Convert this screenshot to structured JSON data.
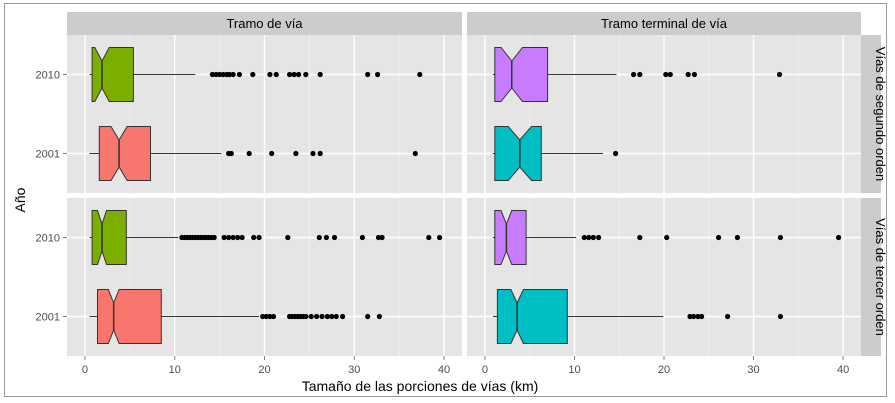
{
  "chart_data": {
    "type": "boxplot",
    "xlabel": "Tamaño de las porciones de vías (km)",
    "ylabel": "Año",
    "xlim": [
      -2,
      42
    ],
    "xticks": [
      0,
      10,
      20,
      30,
      40
    ],
    "ycategories": [
      "2010",
      "2001"
    ],
    "grid": true,
    "legend": "none",
    "colors": {
      "2010": [
        "#7cae00",
        "#c77cff"
      ],
      "2001": [
        "#f8766d",
        "#00bfc4"
      ]
    },
    "facet_cols": [
      "Tramo de vía",
      "Tramo terminal de vía"
    ],
    "facet_rows": [
      "Vías de segundo orden",
      "Vías de tercer orden"
    ],
    "panels": [
      {
        "col": "Tramo de vía",
        "row": "Vías de segundo orden",
        "boxes": [
          {
            "year": "2010",
            "whisker_low": 0.5,
            "q1": 0.8,
            "median": 1.9,
            "q3": 5.4,
            "whisker_high": 12.3,
            "notch": 0.8,
            "outliers": [
              14.2,
              14.6,
              15.0,
              15.4,
              15.8,
              16.1,
              16.5,
              17.2,
              18.7,
              20.6,
              21.3,
              22.8,
              23.3,
              23.8,
              24.6,
              26.2,
              31.5,
              32.6,
              37.3
            ]
          },
          {
            "year": "2001",
            "whisker_low": 0.5,
            "q1": 1.6,
            "median": 3.8,
            "q3": 7.3,
            "whisker_high": 15.2,
            "notch": 0.9,
            "outliers": [
              16.0,
              16.3,
              18.3,
              20.8,
              23.5,
              25.4,
              26.2,
              36.8
            ]
          }
        ]
      },
      {
        "col": "Tramo terminal de vía",
        "row": "Vías de segundo orden",
        "boxes": [
          {
            "year": "2010",
            "whisker_low": 0.9,
            "q1": 1.1,
            "median": 3.0,
            "q3": 7.0,
            "whisker_high": 14.7,
            "notch": 1.2,
            "outliers": [
              16.6,
              17.3,
              20.2,
              20.7,
              22.7,
              23.4,
              32.9
            ]
          },
          {
            "year": "2001",
            "whisker_low": 0.9,
            "q1": 1.1,
            "median": 3.9,
            "q3": 6.3,
            "whisker_high": 13.2,
            "notch": 1.3,
            "outliers": [
              14.6
            ]
          }
        ]
      },
      {
        "col": "Tramo de vía",
        "row": "Vías de tercer orden",
        "boxes": [
          {
            "year": "2010",
            "whisker_low": 0.5,
            "q1": 0.8,
            "median": 1.9,
            "q3": 4.6,
            "whisker_high": 10.4,
            "notch": 0.5,
            "outliers": [
              10.8,
              11.1,
              11.4,
              11.7,
              12.0,
              12.3,
              12.6,
              12.9,
              13.2,
              13.5,
              13.8,
              14.1,
              14.4,
              15.5,
              16.0,
              16.5,
              17.0,
              17.5,
              18.8,
              19.4,
              22.6,
              26.1,
              26.9,
              27.8,
              30.9,
              32.7,
              33.1,
              38.3,
              39.5
            ]
          },
          {
            "year": "2001",
            "whisker_low": 0.5,
            "q1": 1.4,
            "median": 3.2,
            "q3": 8.5,
            "whisker_high": 19.4,
            "notch": 0.6,
            "outliers": [
              19.8,
              20.2,
              20.6,
              21.0,
              22.8,
              23.1,
              23.4,
              23.7,
              24.0,
              24.3,
              24.6,
              25.2,
              25.8,
              26.4,
              27.0,
              27.5,
              28.0,
              28.7,
              31.5,
              32.8
            ]
          }
        ]
      },
      {
        "col": "Tramo terminal de vía",
        "row": "Vías de tercer orden",
        "boxes": [
          {
            "year": "2010",
            "whisker_low": 0.9,
            "q1": 1.1,
            "median": 2.4,
            "q3": 4.6,
            "whisker_high": 10.2,
            "notch": 0.6,
            "outliers": [
              11.1,
              11.6,
              12.1,
              12.7,
              17.3,
              20.3,
              26.1,
              28.2,
              33.0,
              39.5
            ]
          },
          {
            "year": "2001",
            "whisker_low": 0.9,
            "q1": 1.4,
            "median": 3.6,
            "q3": 9.2,
            "whisker_high": 19.9,
            "notch": 0.7,
            "outliers": [
              22.9,
              23.3,
              23.8,
              24.2,
              27.1,
              33.0
            ]
          }
        ]
      }
    ]
  }
}
